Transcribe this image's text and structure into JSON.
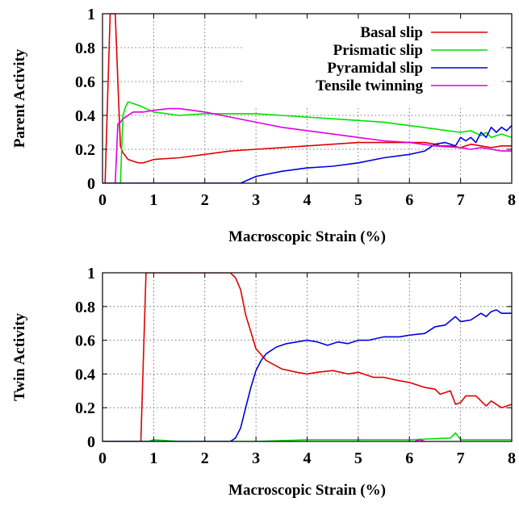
{
  "chart_data": [
    {
      "type": "line",
      "xlabel": "Macroscopic Strain (%)",
      "ylabel": "Parent Activity",
      "xlim": [
        0,
        8
      ],
      "ylim": [
        0,
        1
      ],
      "xticks": [
        "0",
        "1",
        "2",
        "3",
        "4",
        "5",
        "6",
        "7",
        "8"
      ],
      "yticks": [
        "0",
        "0.2",
        "0.4",
        "0.6",
        "0.8",
        "1"
      ],
      "grid": true,
      "legend_position": "top-right",
      "series": [
        {
          "name": "Basal slip",
          "color": "#e00000",
          "x": [
            0.05,
            0.1,
            0.15,
            0.2,
            0.25,
            0.3,
            0.35,
            0.4,
            0.5,
            0.6,
            0.7,
            0.8,
            1.0,
            1.5,
            2.0,
            2.5,
            3.0,
            3.5,
            4.0,
            4.5,
            5.0,
            5.5,
            6.0,
            6.3,
            6.5,
            6.6,
            6.8,
            7.0,
            7.2,
            7.4,
            7.6,
            7.8,
            8.0
          ],
          "y": [
            0.0,
            0.5,
            1.0,
            1.0,
            1.0,
            0.6,
            0.22,
            0.18,
            0.14,
            0.13,
            0.12,
            0.12,
            0.14,
            0.15,
            0.17,
            0.19,
            0.2,
            0.21,
            0.22,
            0.23,
            0.24,
            0.24,
            0.24,
            0.24,
            0.23,
            0.22,
            0.22,
            0.21,
            0.23,
            0.22,
            0.21,
            0.22,
            0.22
          ]
        },
        {
          "name": "Prismatic slip",
          "color": "#00e000",
          "x": [
            0.25,
            0.35,
            0.4,
            0.45,
            0.5,
            0.7,
            1.0,
            1.5,
            2.0,
            2.5,
            3.0,
            3.5,
            4.0,
            4.5,
            5.0,
            5.5,
            6.0,
            6.5,
            7.0,
            7.2,
            7.4,
            7.5,
            7.6,
            7.8,
            8.0
          ],
          "y": [
            0.0,
            0.0,
            0.4,
            0.45,
            0.48,
            0.46,
            0.42,
            0.4,
            0.41,
            0.41,
            0.41,
            0.4,
            0.39,
            0.38,
            0.37,
            0.36,
            0.34,
            0.32,
            0.3,
            0.31,
            0.28,
            0.3,
            0.27,
            0.29,
            0.27
          ]
        },
        {
          "name": "Pyramidal slip",
          "color": "#0000e0",
          "x": [
            0.0,
            0.5,
            1.0,
            1.5,
            2.0,
            2.5,
            2.7,
            3.0,
            3.5,
            4.0,
            4.5,
            5.0,
            5.5,
            6.0,
            6.3,
            6.5,
            6.7,
            6.9,
            7.0,
            7.1,
            7.2,
            7.3,
            7.4,
            7.5,
            7.6,
            7.7,
            7.8,
            7.9,
            8.0
          ],
          "y": [
            0.0,
            0.0,
            0.0,
            0.0,
            0.0,
            0.0,
            0.0,
            0.04,
            0.07,
            0.09,
            0.1,
            0.12,
            0.15,
            0.17,
            0.19,
            0.23,
            0.24,
            0.22,
            0.27,
            0.25,
            0.27,
            0.24,
            0.3,
            0.27,
            0.33,
            0.3,
            0.33,
            0.31,
            0.34
          ]
        },
        {
          "name": "Tensile twinning",
          "color": "#e000e0",
          "x": [
            0.25,
            0.3,
            0.35,
            0.4,
            0.6,
            0.8,
            1.0,
            1.3,
            1.5,
            2.0,
            2.5,
            3.0,
            3.5,
            4.0,
            4.5,
            5.0,
            5.5,
            6.0,
            6.5,
            7.0,
            7.2,
            7.4,
            7.6,
            7.8,
            8.0
          ],
          "y": [
            0.0,
            0.35,
            0.36,
            0.38,
            0.42,
            0.42,
            0.43,
            0.44,
            0.44,
            0.42,
            0.39,
            0.36,
            0.33,
            0.31,
            0.29,
            0.27,
            0.25,
            0.24,
            0.22,
            0.21,
            0.2,
            0.21,
            0.2,
            0.19,
            0.19
          ]
        }
      ]
    },
    {
      "type": "line",
      "xlabel": "Macroscopic Strain (%)",
      "ylabel": "Twin Activity",
      "xlim": [
        0,
        8
      ],
      "ylim": [
        0,
        1
      ],
      "xticks": [
        "0",
        "1",
        "2",
        "3",
        "4",
        "5",
        "6",
        "7",
        "8"
      ],
      "yticks": [
        "0",
        "0.2",
        "0.4",
        "0.6",
        "0.8",
        "1"
      ],
      "grid": true,
      "series": [
        {
          "name": "Basal slip",
          "color": "#e00000",
          "x": [
            0.0,
            0.75,
            0.8,
            0.85,
            0.9,
            1.0,
            1.5,
            2.0,
            2.4,
            2.5,
            2.6,
            2.7,
            2.8,
            2.9,
            3.0,
            3.2,
            3.5,
            3.8,
            4.0,
            4.2,
            4.5,
            4.8,
            5.0,
            5.3,
            5.5,
            5.8,
            6.0,
            6.3,
            6.5,
            6.6,
            6.8,
            6.9,
            7.0,
            7.1,
            7.3,
            7.5,
            7.6,
            7.8,
            8.0
          ],
          "y": [
            0.0,
            0.0,
            0.5,
            1.0,
            1.0,
            1.0,
            1.0,
            1.0,
            1.0,
            1.0,
            0.97,
            0.9,
            0.75,
            0.65,
            0.55,
            0.48,
            0.43,
            0.41,
            0.4,
            0.41,
            0.42,
            0.4,
            0.41,
            0.38,
            0.38,
            0.36,
            0.35,
            0.32,
            0.31,
            0.28,
            0.3,
            0.22,
            0.23,
            0.27,
            0.27,
            0.21,
            0.24,
            0.2,
            0.22
          ]
        },
        {
          "name": "Prismatic slip",
          "color": "#00e000",
          "x": [
            0.0,
            0.9,
            1.0,
            1.5,
            2.0,
            3.0,
            4.0,
            5.0,
            6.0,
            6.8,
            6.9,
            7.0,
            7.5,
            8.0
          ],
          "y": [
            0.0,
            0.0,
            0.01,
            0.0,
            0.0,
            0.0,
            0.01,
            0.01,
            0.01,
            0.02,
            0.05,
            0.01,
            0.01,
            0.01
          ]
        },
        {
          "name": "Pyramidal slip",
          "color": "#0000e0",
          "x": [
            0.0,
            2.5,
            2.6,
            2.7,
            2.8,
            2.9,
            3.0,
            3.1,
            3.2,
            3.4,
            3.6,
            3.8,
            4.0,
            4.2,
            4.4,
            4.6,
            4.8,
            5.0,
            5.2,
            5.5,
            5.8,
            6.0,
            6.3,
            6.5,
            6.7,
            6.9,
            7.0,
            7.2,
            7.4,
            7.5,
            7.6,
            7.7,
            7.8,
            8.0
          ],
          "y": [
            0.0,
            0.0,
            0.02,
            0.08,
            0.2,
            0.32,
            0.42,
            0.48,
            0.52,
            0.56,
            0.58,
            0.59,
            0.6,
            0.59,
            0.57,
            0.59,
            0.58,
            0.6,
            0.6,
            0.62,
            0.62,
            0.63,
            0.64,
            0.68,
            0.69,
            0.74,
            0.71,
            0.72,
            0.76,
            0.74,
            0.77,
            0.78,
            0.76,
            0.76
          ]
        },
        {
          "name": "Tensile twinning",
          "color": "#e000e0",
          "x": [
            6.1,
            6.2,
            6.3
          ],
          "y": [
            0.0,
            0.01,
            0.0
          ]
        }
      ]
    }
  ]
}
